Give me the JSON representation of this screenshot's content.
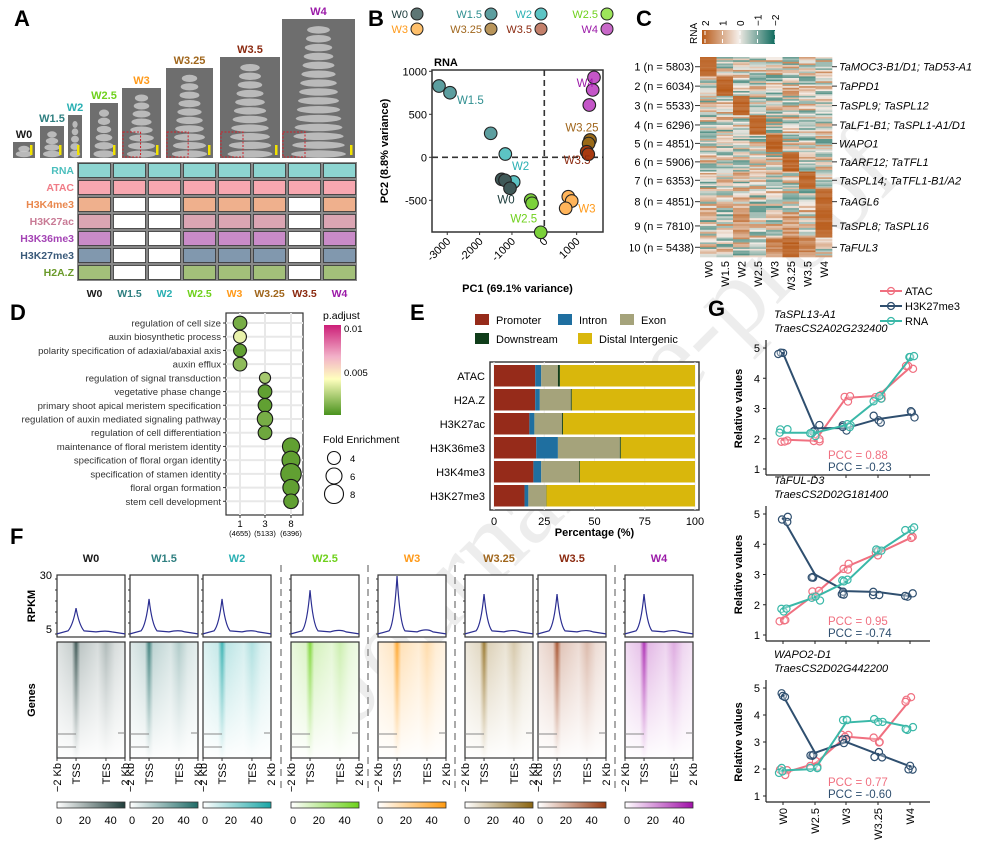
{
  "panels": {
    "A": {
      "letter": "A",
      "stages": [
        {
          "label": "W0",
          "color": "#1a1a1a"
        },
        {
          "label": "W1.5",
          "color": "#2f7f80"
        },
        {
          "label": "W2",
          "color": "#2ab0b3"
        },
        {
          "label": "W2.5",
          "color": "#6fd11c"
        },
        {
          "label": "W3",
          "color": "#ff9a1a"
        },
        {
          "label": "W3.25",
          "color": "#a0661c"
        },
        {
          "label": "W3.5",
          "color": "#8b2a10"
        },
        {
          "label": "W4",
          "color": "#9b1aa8"
        }
      ],
      "assays": [
        {
          "label": "RNA",
          "color": "#4bbfbd",
          "fill": "#8dd5d1",
          "present": [
            1,
            1,
            1,
            1,
            1,
            1,
            1,
            1
          ]
        },
        {
          "label": "ATAC",
          "color": "#f07c87",
          "fill": "#f7a7b0",
          "present": [
            1,
            1,
            1,
            1,
            1,
            1,
            1,
            1
          ]
        },
        {
          "label": "H3K4me3",
          "color": "#e9884e",
          "fill": "#efb08d",
          "present": [
            1,
            0,
            0,
            1,
            1,
            1,
            0,
            1
          ]
        },
        {
          "label": "H3K27ac",
          "color": "#c97b96",
          "fill": "#dba5b3",
          "present": [
            1,
            0,
            0,
            1,
            1,
            1,
            0,
            1
          ]
        },
        {
          "label": "H3K36me3",
          "color": "#a444b5",
          "fill": "#c98bc8",
          "present": [
            1,
            0,
            0,
            1,
            1,
            1,
            0,
            1
          ]
        },
        {
          "label": "H3K27me3",
          "color": "#3a5a7a",
          "fill": "#8198ae",
          "present": [
            1,
            0,
            0,
            1,
            1,
            1,
            0,
            1
          ]
        },
        {
          "label": "H2A.Z",
          "color": "#6a9a2a",
          "fill": "#a3c07a",
          "present": [
            1,
            0,
            0,
            1,
            1,
            1,
            0,
            1
          ]
        }
      ]
    },
    "B": {
      "letter": "B",
      "legend": [
        {
          "label": "W0",
          "color": "#5d7574"
        },
        {
          "label": "W1.5",
          "color": "#5c9e9f"
        },
        {
          "label": "W2",
          "color": "#5cc4c4"
        },
        {
          "label": "W2.5",
          "color": "#9de55a"
        },
        {
          "label": "W3",
          "color": "#ffc06b"
        },
        {
          "label": "W3.25",
          "color": "#b9955a"
        },
        {
          "label": "W3.5",
          "color": "#c4806b"
        },
        {
          "label": "W4",
          "color": "#c868c8"
        }
      ]
    },
    "C": {
      "letter": "C",
      "colorbar_title": "RNA",
      "colorbar_ticks": [
        "2",
        "1",
        "0",
        "−1",
        "−2"
      ],
      "clusters": [
        {
          "label": "1 (n = 5803)",
          "genes": "TaMOC3-B1/D1; TaD53-A1",
          "peak": 0
        },
        {
          "label": "2 (n = 6034)",
          "genes": "TaPPD1",
          "peak": 1
        },
        {
          "label": "3 (n = 5533)",
          "genes": "TaSPL9; TaSPL12",
          "peak": 2
        },
        {
          "label": "4 (n = 6296)",
          "genes": "TaLF1-B1; TaSPL1-A1/D1",
          "peak": 3
        },
        {
          "label": "5 (n = 4851)",
          "genes": "WAPO1",
          "peak": 4
        },
        {
          "label": "6 (n = 5906)",
          "genes": "TaARF12; TaTFL1",
          "peak": 5
        },
        {
          "label": "7 (n = 6353)",
          "genes": "TaSPL14; TaTFL1-B1/A2",
          "peak": 6
        },
        {
          "label": "8 (n = 4851)",
          "genes": "TaAGL6",
          "peak": 7
        },
        {
          "label": "9 (n = 7810)",
          "genes": "TaSPL8; TaSPL16",
          "peak": 7
        },
        {
          "label": "10 (n = 5438)",
          "genes": "TaFUL3",
          "peak": 5
        }
      ],
      "columns": [
        "W0",
        "W1.5",
        "W2",
        "W2.5",
        "W3",
        "W3.25",
        "W3.5",
        "W4"
      ]
    },
    "D": {
      "letter": "D"
    },
    "E": {
      "letter": "E"
    },
    "F": {
      "letter": "F",
      "ylabel_top": "RPKM",
      "ylabel_bottom": "Genes",
      "y_ticks": [
        "30",
        "5"
      ],
      "x_ticks": [
        "−2 Kb",
        "TSS",
        "TES",
        "2 Kb"
      ],
      "colorbar_ticks": [
        "0",
        "20",
        "40"
      ],
      "samples": [
        {
          "label": "W0",
          "color": "#1a1a1a",
          "heat": "#1f3d3a",
          "peak": 14.7,
          "group": 0
        },
        {
          "label": "W1.5",
          "color": "#2f7f80",
          "heat": "#1f6b67",
          "peak": 18.9,
          "group": 0
        },
        {
          "label": "W2",
          "color": "#2ab0b3",
          "heat": "#1aa6a6",
          "peak": 18.9,
          "group": 0
        },
        {
          "label": "W2.5",
          "color": "#6fd11c",
          "heat": "#6dd11a",
          "peak": 23.0,
          "group": 1
        },
        {
          "label": "W3",
          "color": "#ff9a1a",
          "heat": "#ff9a10",
          "peak": 29.5,
          "group": 2
        },
        {
          "label": "W3.25",
          "color": "#a0661c",
          "heat": "#8a6410",
          "peak": 21.2,
          "group": 3
        },
        {
          "label": "W3.5",
          "color": "#8b2a10",
          "heat": "#9a3a10",
          "peak": 21.2,
          "group": 3
        },
        {
          "label": "W4",
          "color": "#9b1aa8",
          "heat": "#a010a8",
          "peak": 21.2,
          "group": 4
        }
      ]
    },
    "G": {
      "letter": "G"
    }
  },
  "chart_data": [
    {
      "id": "B",
      "type": "scatter",
      "title": "RNA",
      "xlabel": "PC1 (69.1% variance)",
      "ylabel": "PC2 (8.8% variance)",
      "xlim": [
        -3400,
        1750
      ],
      "ylim": [
        -950,
        1050
      ],
      "xticks": [
        -3000,
        -2000,
        -1000,
        0,
        1000
      ],
      "yticks": [
        -500,
        0,
        500,
        1000
      ],
      "reference_lines": {
        "x": 0,
        "y": 0
      },
      "series": [
        {
          "name": "W1.5",
          "color": "#5c9e9f",
          "points": [
            [
              -3255,
              829
            ],
            [
              -2915,
              751
            ],
            [
              -1657,
              279
            ]
          ],
          "label_at": [
            -2700,
            620
          ],
          "label_color": "#2f8f90"
        },
        {
          "name": "W2",
          "color": "#5cc4c4",
          "points": [
            [
              -1205,
              38
            ],
            [
              -946,
              -287
            ]
          ],
          "label_at": [
            -1000,
            -150
          ],
          "label_color": "#2ab0b3"
        },
        {
          "name": "W0",
          "color": "#3f5958",
          "points": [
            [
              -1317,
              -256
            ],
            [
              -1215,
              -267
            ],
            [
              -1060,
              -360
            ]
          ],
          "label_at": [
            -1450,
            -540
          ],
          "label_color": "#1a3a3a"
        },
        {
          "name": "W2.5",
          "color": "#7bd13a",
          "points": [
            [
              -420,
              -497
            ],
            [
              -380,
              -535
            ],
            [
              -111,
              -872
            ]
          ],
          "label_at": [
            -1050,
            -760
          ],
          "label_color": "#6fd11c"
        },
        {
          "name": "W3",
          "color": "#ffb45a",
          "points": [
            [
              742,
              -458
            ],
            [
              847,
              -508
            ],
            [
              661,
              -593
            ]
          ],
          "label_at": [
            1050,
            -640
          ],
          "label_color": "#ff9a1a"
        },
        {
          "name": "W3.25",
          "color": "#9a6a18",
          "points": [
            [
              1413,
              201
            ],
            [
              1370,
              160
            ]
          ],
          "label_at": [
            650,
            300
          ],
          "label_color": "#a0661c"
        },
        {
          "name": "W3.5",
          "color": "#a83a10",
          "points": [
            [
              1310,
              65
            ],
            [
              1360,
              35
            ]
          ],
          "label_at": [
            600,
            -80
          ],
          "label_color": "#8b2a10"
        },
        {
          "name": "W4",
          "color": "#c456c8",
          "points": [
            [
              1536,
              930
            ],
            [
              1496,
              783
            ],
            [
              1391,
              608
            ]
          ],
          "label_at": [
            1000,
            820
          ],
          "label_color": "#9b1aa8"
        }
      ]
    },
    {
      "id": "D",
      "type": "scatter",
      "subtype": "bubble",
      "x_categories": [
        "1",
        "3",
        "8"
      ],
      "x_sublabels": [
        "(4655)",
        "(5133)",
        "(6396)"
      ],
      "color_legend_title": "p.adjust",
      "color_ticks": [
        "0.01",
        "0.005"
      ],
      "color_range": [
        0.001,
        0.011
      ],
      "size_legend_title": "Fold Enrichment",
      "size_ticks": [
        4,
        6,
        8
      ],
      "terms": [
        {
          "term": "regulation of cell size",
          "cluster": "1",
          "fold": 5.0,
          "padj": 0.002
        },
        {
          "term": "auxin biosynthetic process",
          "cluster": "1",
          "fold": 4.5,
          "padj": 0.0045
        },
        {
          "term": "polarity specification of adaxial/abaxial axis",
          "cluster": "1",
          "fold": 4.5,
          "padj": 0.0015
        },
        {
          "term": "auxin efflux",
          "cluster": "1",
          "fold": 5.0,
          "padj": 0.0025
        },
        {
          "term": "regulation of signal transduction",
          "cluster": "3",
          "fold": 3.5,
          "padj": 0.003
        },
        {
          "term": "vegetative phase change",
          "cluster": "3",
          "fold": 5.0,
          "padj": 0.0015
        },
        {
          "term": "primary shoot apical meristem specification",
          "cluster": "3",
          "fold": 5.0,
          "padj": 0.0015
        },
        {
          "term": "regulation of auxin mediated signaling pathway",
          "cluster": "3",
          "fold": 6.0,
          "padj": 0.002
        },
        {
          "term": "regulation of cell differentiation",
          "cluster": "3",
          "fold": 5.0,
          "padj": 0.0018
        },
        {
          "term": "maintenance of floral meristem identity",
          "cluster": "8",
          "fold": 7.0,
          "padj": 0.0015
        },
        {
          "term": "specification of floral organ identity",
          "cluster": "8",
          "fold": 7.5,
          "padj": 0.0015
        },
        {
          "term": "specification of stamen identity",
          "cluster": "8",
          "fold": 9.0,
          "padj": 0.0015
        },
        {
          "term": "floral organ formation",
          "cluster": "8",
          "fold": 6.5,
          "padj": 0.0015
        },
        {
          "term": "stem cell development",
          "cluster": "8",
          "fold": 5.5,
          "padj": 0.0015
        }
      ]
    },
    {
      "id": "E",
      "type": "bar",
      "orientation": "horizontal-stacked",
      "xlabel": "Percentage (%)",
      "xlim": [
        0,
        100
      ],
      "xticks": [
        0,
        25,
        50,
        75,
        100
      ],
      "categories": [
        "ATAC",
        "H2A.Z",
        "H3K27ac",
        "H3K36me3",
        "H3K4me3",
        "H3K27me3"
      ],
      "legend": "top",
      "series": [
        {
          "name": "Promoter",
          "color": "#962b1a",
          "values": [
            20.5,
            20.5,
            17.6,
            21.0,
            19.6,
            15.2
          ]
        },
        {
          "name": "Intron",
          "color": "#1f6fa0",
          "values": [
            3.0,
            2.3,
            2.5,
            10.8,
            3.9,
            1.9
          ]
        },
        {
          "name": "Exon",
          "color": "#a5a37b",
          "values": [
            8.3,
            15.4,
            13.7,
            30.8,
            18.8,
            8.9
          ]
        },
        {
          "name": "Downstream",
          "color": "#103d1a",
          "values": [
            1.0,
            0.5,
            0.5,
            0.5,
            0.4,
            0.1
          ]
        },
        {
          "name": "Distal Intergenic",
          "color": "#d9b70c",
          "values": [
            67.2,
            61.3,
            65.7,
            36.9,
            57.3,
            73.9
          ]
        }
      ]
    },
    {
      "id": "G",
      "type": "line",
      "x": [
        "W0",
        "W2.5",
        "W3",
        "W3.25",
        "W4"
      ],
      "ylabel": "Relative values",
      "ylim": [
        0.9,
        5.3
      ],
      "yticks": [
        1,
        2,
        3,
        4,
        5
      ],
      "legend": "top-right",
      "legend_entries": [
        {
          "name": "ATAC",
          "color": "#f07080"
        },
        {
          "name": "H3K27me3",
          "color": "#2f4f6f"
        },
        {
          "name": "RNA",
          "color": "#3ab8a8"
        }
      ],
      "plots": [
        {
          "gene": "TaSPL13-A1",
          "gene_id": "TraesCS2A02G232400",
          "pcc_atac": "PCC = 0.88",
          "pcc_k27": "PCC = -0.23",
          "series": [
            {
              "name": "ATAC",
              "values": [
                1.97,
                1.93,
                3.35,
                3.42,
                4.35
              ]
            },
            {
              "name": "H3K27me3",
              "values": [
                4.83,
                2.35,
                2.35,
                2.65,
                2.8
              ]
            },
            {
              "name": "RNA",
              "values": [
                2.2,
                2.2,
                2.45,
                3.3,
                4.65
              ]
            }
          ]
        },
        {
          "gene": "TaFUL-D3",
          "gene_id": "TraesCS2D02G181400",
          "pcc_atac": "PCC = 0.95",
          "pcc_k27": "PCC = -0.74",
          "series": [
            {
              "name": "ATAC",
              "values": [
                1.55,
                2.35,
                3.25,
                3.7,
                4.2
              ]
            },
            {
              "name": "H3K27me3",
              "values": [
                4.85,
                3.0,
                2.45,
                2.42,
                2.28
              ]
            },
            {
              "name": "RNA",
              "values": [
                1.88,
                2.25,
                2.75,
                3.75,
                4.45
              ]
            }
          ]
        },
        {
          "gene": "WAPO2-D1",
          "gene_id": "TraesCS2D02G442200",
          "pcc_atac": "PCC = 0.77",
          "pcc_k27": "PCC = -0.60",
          "series": [
            {
              "name": "ATAC",
              "values": [
                1.85,
                2.2,
                3.2,
                3.1,
                4.55
              ]
            },
            {
              "name": "H3K27me3",
              "values": [
                4.72,
                2.6,
                3.0,
                2.55,
                2.1
              ]
            },
            {
              "name": "RNA",
              "values": [
                1.95,
                2.0,
                3.72,
                3.8,
                3.55
              ]
            }
          ]
        }
      ]
    }
  ],
  "watermark": "Journal Pre-proof"
}
